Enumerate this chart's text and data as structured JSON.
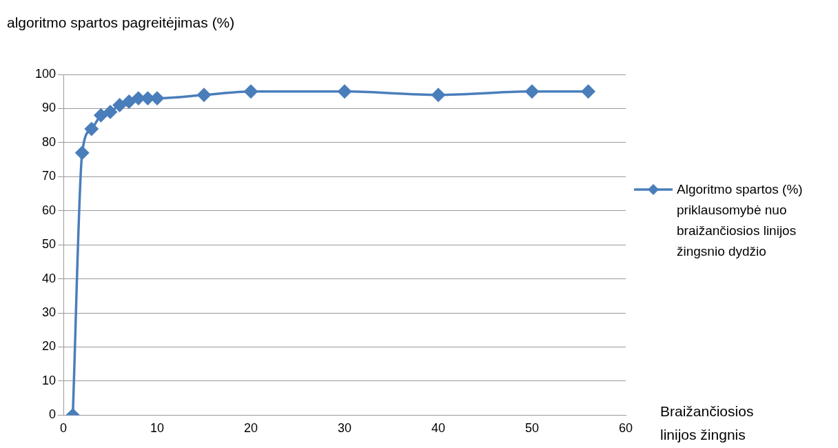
{
  "chart_data": {
    "type": "line",
    "ylabel": "algoritmo spartos pagreitėjimas (%)",
    "xlabel": "Braižančiosios linijos žingnis",
    "x": [
      1,
      2,
      3,
      4,
      5,
      6,
      7,
      8,
      9,
      10,
      15,
      20,
      30,
      40,
      50,
      56
    ],
    "series": [
      {
        "name": "Algoritmo spartos (%) priklausomybė nuo braižančiosios linijos žingsnio dydžio",
        "color": "#4a7ebb",
        "values": [
          0,
          77,
          84,
          88,
          89,
          91,
          92,
          93,
          93,
          93,
          94,
          95,
          95,
          94,
          95,
          95
        ]
      }
    ],
    "xlim": [
      0,
      60
    ],
    "xticks": [
      0,
      10,
      20,
      30,
      40,
      50,
      60
    ],
    "ylim": [
      0,
      100
    ],
    "yticks": [
      0,
      10,
      20,
      30,
      40,
      50,
      60,
      70,
      80,
      90,
      100
    ],
    "grid": "y",
    "legend": "right",
    "marker": "diamond",
    "line_style": "solid"
  }
}
